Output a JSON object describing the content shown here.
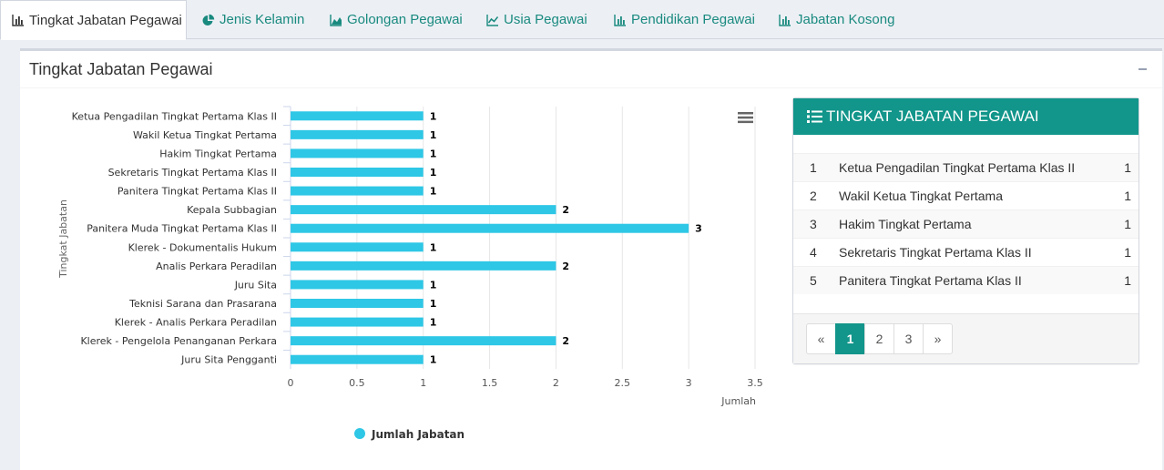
{
  "tabs": [
    {
      "label": "Tingkat Jabatan Pegawai",
      "icon": "bar-chart-icon",
      "active": true
    },
    {
      "label": "Jenis Kelamin",
      "icon": "pie-chart-icon"
    },
    {
      "label": "Golongan Pegawai",
      "icon": "area-chart-icon"
    },
    {
      "label": "Usia Pegawai",
      "icon": "line-chart-icon"
    },
    {
      "label": "Pendidikan Pegawai",
      "icon": "bar-chart-icon"
    },
    {
      "label": "Jabatan Kosong",
      "icon": "bar-chart-icon"
    }
  ],
  "box": {
    "title": "Tingkat Jabatan Pegawai"
  },
  "colors": {
    "accent": "#12958a",
    "bar": "#2ec7e6",
    "tab_text": "#1a8a7f"
  },
  "chart_data": {
    "type": "bar",
    "orientation": "horizontal",
    "categories": [
      "Ketua Pengadilan Tingkat Pertama Klas II",
      "Wakil Ketua Tingkat Pertama",
      "Hakim Tingkat Pertama",
      "Sekretaris Tingkat Pertama Klas II",
      "Panitera Tingkat Pertama Klas II",
      "Kepala Subbagian",
      "Panitera Muda Tingkat Pertama Klas II",
      "Klerek - Dokumentalis Hukum",
      "Analis Perkara Peradilan",
      "Juru Sita",
      "Teknisi Sarana dan Prasarana",
      "Klerek - Analis Perkara Peradilan",
      "Klerek - Pengelola Penanganan Perkara",
      "Juru Sita Pengganti"
    ],
    "series": [
      {
        "name": "Jumlah Jabatan",
        "values": [
          1,
          1,
          1,
          1,
          1,
          2,
          3,
          1,
          2,
          1,
          1,
          1,
          2,
          1
        ]
      }
    ],
    "xlabel": "Jumlah",
    "ylabel": "Tingkat Jabatan",
    "xlim": [
      0,
      3.5
    ],
    "xticks": [
      "0",
      "0.5",
      "1",
      "1.5",
      "2",
      "2.5",
      "3",
      "3.5"
    ],
    "grid": true,
    "legend": "bottom"
  },
  "panel": {
    "title": "TINGKAT JABATAN PEGAWAI",
    "rows": [
      {
        "no": "1",
        "name": "Ketua Pengadilan Tingkat Pertama Klas II",
        "value": "1"
      },
      {
        "no": "2",
        "name": "Wakil Ketua Tingkat Pertama",
        "value": "1"
      },
      {
        "no": "3",
        "name": "Hakim Tingkat Pertama",
        "value": "1"
      },
      {
        "no": "4",
        "name": "Sekretaris Tingkat Pertama Klas II",
        "value": "1"
      },
      {
        "no": "5",
        "name": "Panitera Tingkat Pertama Klas II",
        "value": "1"
      }
    ],
    "pagination": {
      "prev": "«",
      "pages": [
        "1",
        "2",
        "3"
      ],
      "current": "1",
      "next": "»"
    }
  }
}
